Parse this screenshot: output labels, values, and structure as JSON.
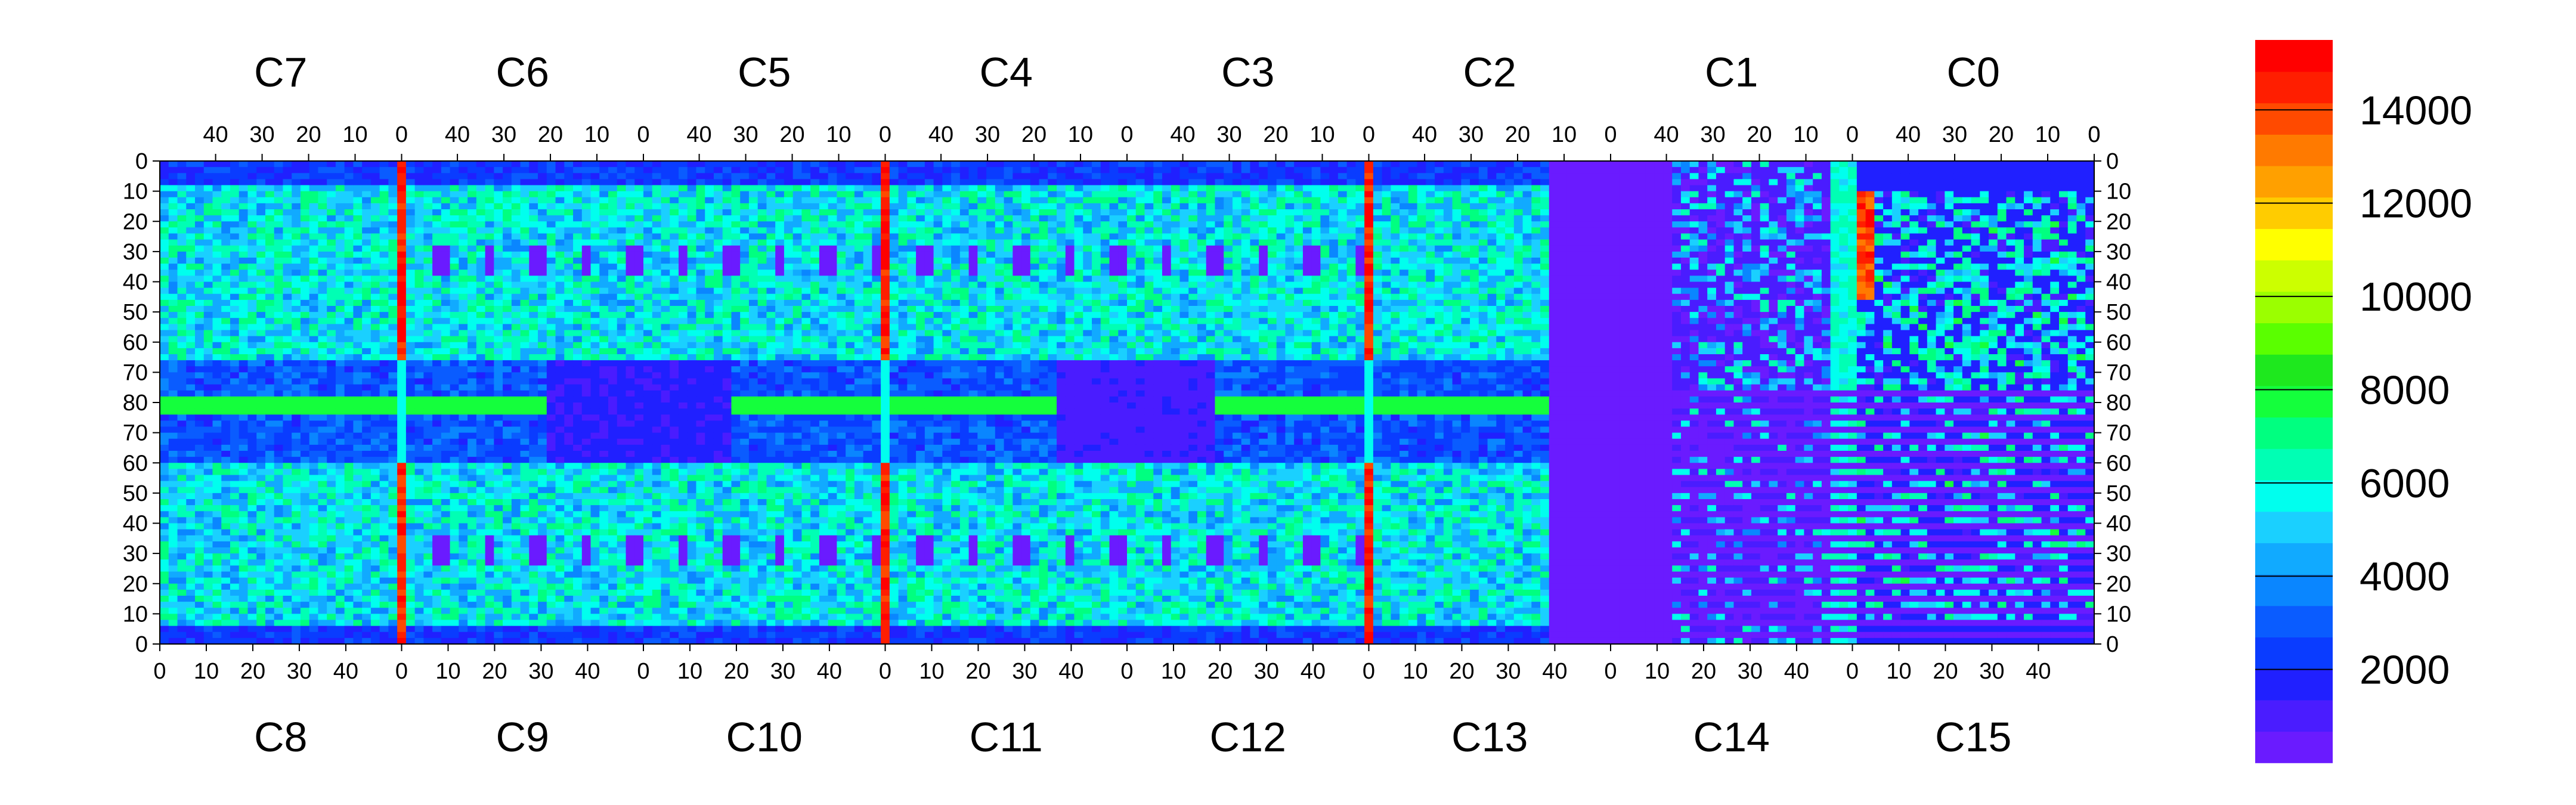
{
  "chart_data": {
    "type": "heatmap",
    "title": "",
    "xlabel": "",
    "ylabel": "",
    "top_chip_labels": [
      "C7",
      "C6",
      "C5",
      "C4",
      "C3",
      "C2",
      "C1",
      "C0"
    ],
    "bottom_chip_labels": [
      "C8",
      "C9",
      "C10",
      "C11",
      "C12",
      "C13",
      "C14",
      "C15"
    ],
    "top_x_tick_labels": [
      "40",
      "30",
      "20",
      "10",
      "0"
    ],
    "bottom_x_tick_labels": [
      "0",
      "10",
      "20",
      "30",
      "40"
    ],
    "y_tick_labels": [
      "0",
      "10",
      "20",
      "30",
      "40",
      "50",
      "60",
      "70",
      "80",
      "70",
      "60",
      "50",
      "40",
      "30",
      "20",
      "10",
      "0"
    ],
    "x_per_chip": [
      0,
      52
    ],
    "y_range": [
      0,
      80
    ],
    "colorbar": {
      "min": 0,
      "max": 15500,
      "tick_values": [
        2000,
        4000,
        6000,
        8000,
        10000,
        12000,
        14000
      ],
      "tick_labels": [
        "2000",
        "4000",
        "6000",
        "8000",
        "10000",
        "12000",
        "14000"
      ],
      "colors": [
        "#6a1bff",
        "#4a1cff",
        "#2020ff",
        "#0a3cff",
        "#0a5cff",
        "#0a86ff",
        "#11aaff",
        "#1ad0ff",
        "#00ffee",
        "#00ffb4",
        "#00ff80",
        "#14ff3c",
        "#1ee81e",
        "#5aff00",
        "#9bff00",
        "#ccff00",
        "#ffff00",
        "#ffcc00",
        "#ffa000",
        "#ff7a00",
        "#ff4a00",
        "#ff1e00",
        "#ff0000"
      ]
    },
    "grid": false,
    "legend": "colorbar-right",
    "regions_note_values": {
      "background_level": 6500,
      "hot_column_level": 14500,
      "dead_region_level": 500
    }
  }
}
